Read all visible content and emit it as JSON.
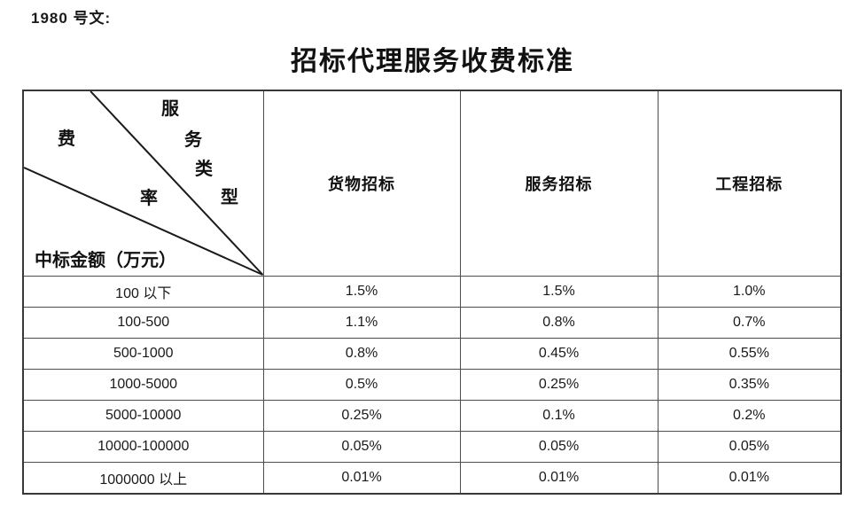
{
  "doc": {
    "ref_label": "1980 号文:",
    "title": "招标代理服务收费标准"
  },
  "table": {
    "corner": {
      "diag_axis1_chars": [
        "服",
        "务",
        "类",
        "型"
      ],
      "diag_axis2_chars": [
        "费",
        "率"
      ],
      "bottom_label": "中标金额（万元）"
    },
    "columns": [
      "货物招标",
      "服务招标",
      "工程招标"
    ],
    "rows": [
      {
        "range": "100 以下",
        "values": [
          "1.5%",
          "1.5%",
          "1.0%"
        ]
      },
      {
        "range": "100-500",
        "values": [
          "1.1%",
          "0.8%",
          "0.7%"
        ]
      },
      {
        "range": "500-1000",
        "values": [
          "0.8%",
          "0.45%",
          "0.55%"
        ]
      },
      {
        "range": "1000-5000",
        "values": [
          "0.5%",
          "0.25%",
          "0.35%"
        ]
      },
      {
        "range": "5000-10000",
        "values": [
          "0.25%",
          "0.1%",
          "0.2%"
        ]
      },
      {
        "range": "10000-100000",
        "values": [
          "0.05%",
          "0.05%",
          "0.05%"
        ]
      },
      {
        "range": "1000000 以上",
        "values": [
          "0.01%",
          "0.01%",
          "0.01%"
        ]
      }
    ]
  },
  "style": {
    "line_color": "#1a1a1a"
  }
}
